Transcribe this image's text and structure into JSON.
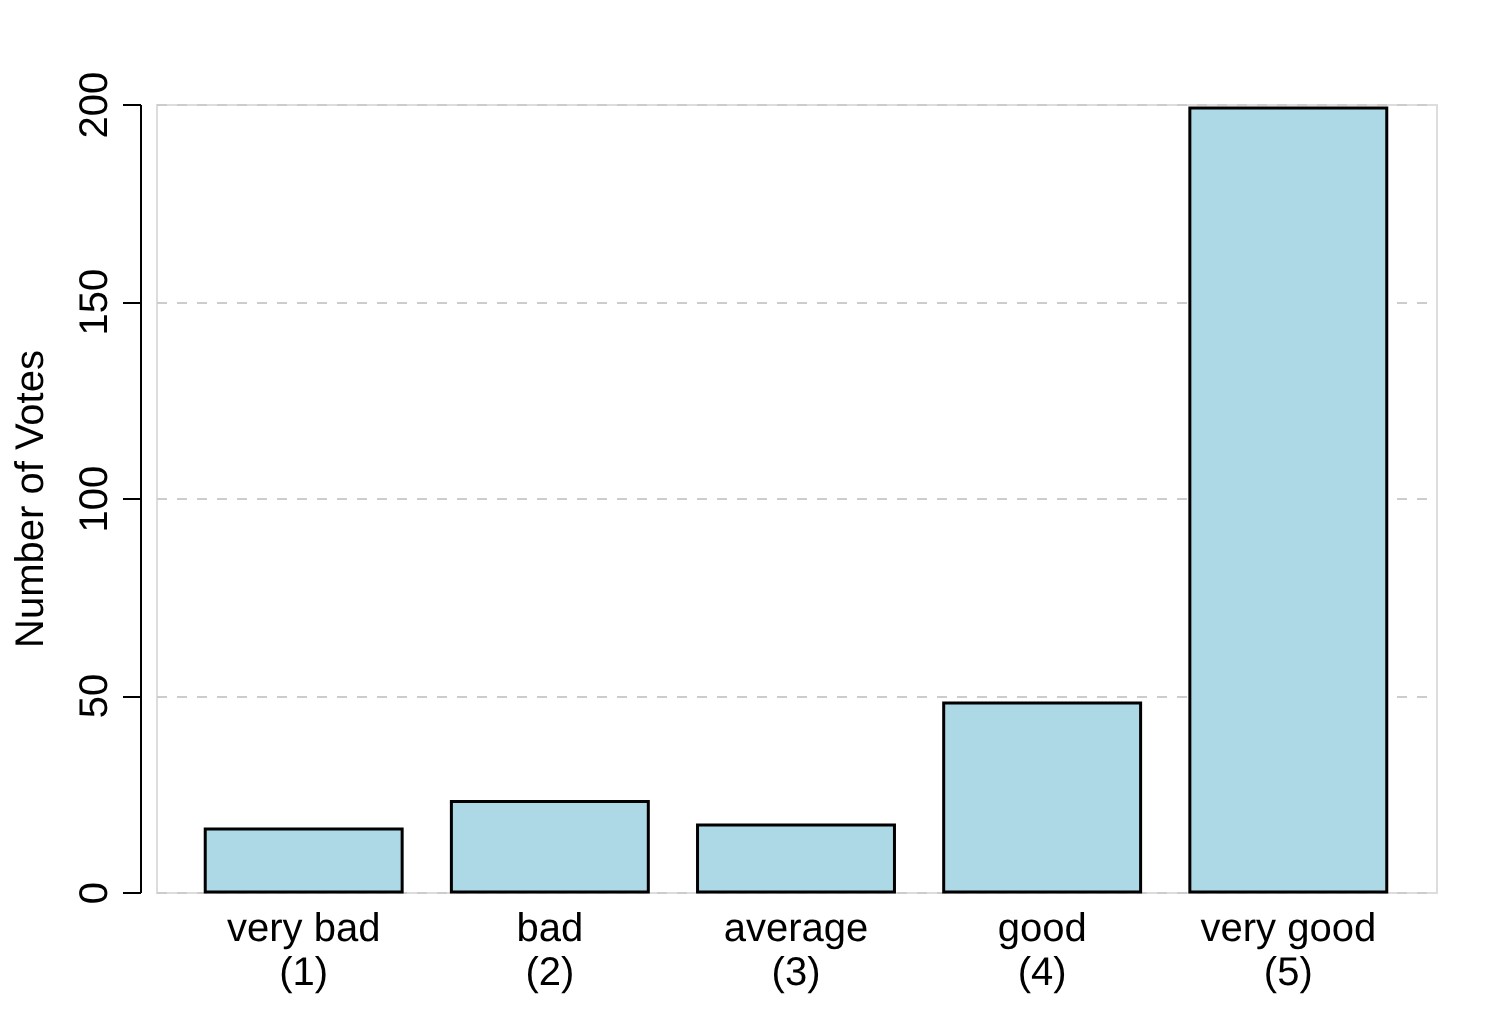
{
  "chart_data": {
    "type": "bar",
    "ylabel": "Number of Votes",
    "categories": [
      "very bad\n(1)",
      "bad\n(2)",
      "average\n(3)",
      "good\n(4)",
      "very good\n(5)"
    ],
    "values": [
      16,
      23,
      17,
      48,
      199
    ],
    "color": "#add8e6",
    "ylim": [
      0,
      200
    ],
    "yticks": [
      0,
      50,
      100,
      150,
      200
    ],
    "grid": "y"
  }
}
